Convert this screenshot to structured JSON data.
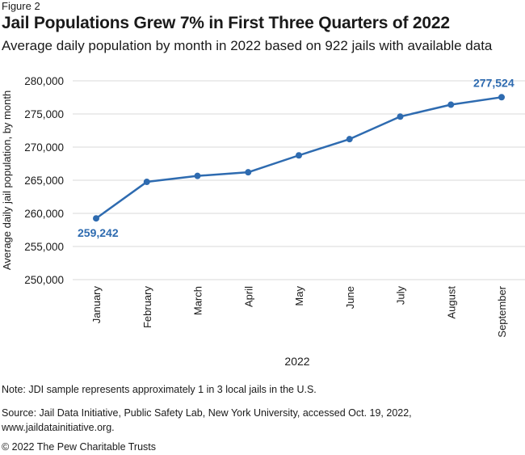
{
  "figure_label": "Figure 2",
  "title": "Jail Populations Grew 7% in First Three Quarters of 2022",
  "subtitle": "Average daily population by month in 2022 based on 922 jails with available data",
  "note": "Note: JDI sample represents approximately 1 in 3 local jails in the U.S.",
  "source": "Source: Jail Data Initiative, Public Safety Lab, New York University, accessed Oct. 19, 2022, www.jaildatainitiative.org.",
  "copyright": "© 2022 The Pew Charitable Trusts",
  "colors": {
    "line": "#2e6bb0",
    "grid": "#d9d9d9",
    "text": "#1a1a1a"
  },
  "chart_data": {
    "type": "line",
    "title": "Jail Populations Grew 7% in First Three Quarters of 2022",
    "xlabel": "2022",
    "ylabel": "Average daily jail population, by month",
    "categories": [
      "January",
      "February",
      "March",
      "April",
      "May",
      "June",
      "July",
      "August",
      "September"
    ],
    "series": [
      {
        "values": [
          259242,
          264750,
          265650,
          266200,
          268750,
          271200,
          274600,
          276400,
          277524
        ]
      }
    ],
    "yticks": [
      "280,000",
      "275,000",
      "270,000",
      "265,000",
      "260,000",
      "255,000",
      "250,000"
    ],
    "ylim": [
      250000,
      280000
    ],
    "annotations": [
      {
        "category": "January",
        "text": "259,242"
      },
      {
        "category": "September",
        "text": "277,524"
      }
    ],
    "grid": true
  }
}
